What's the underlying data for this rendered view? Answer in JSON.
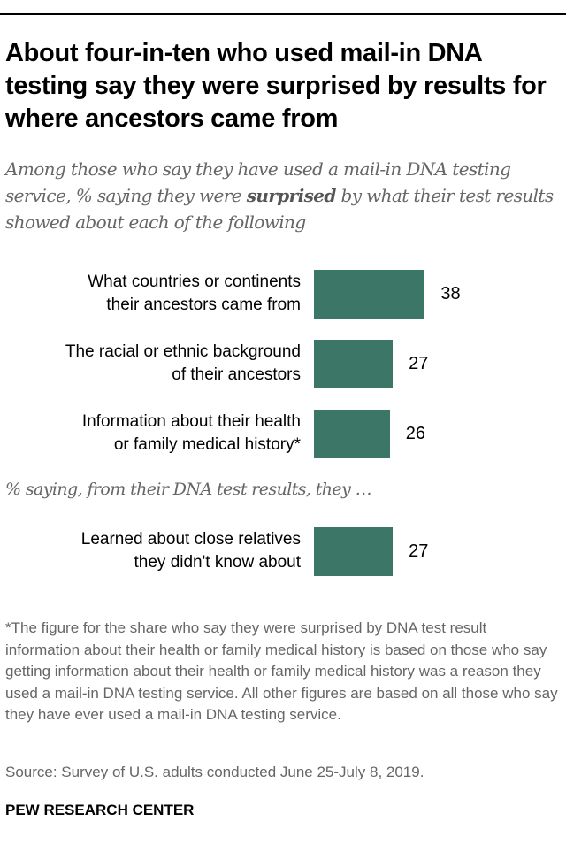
{
  "title": "About four-in-ten who used mail-in DNA testing say they were surprised by results for where ancestors came from",
  "subtitle_pre": "Among those who say they have used a mail-in DNA testing service, % saying they were ",
  "subtitle_bold": "surprised",
  "subtitle_post": " by what their test results showed about each of the following",
  "section2_label": "% saying, from their DNA test results, they …",
  "note": "*The figure for the share who say they were surprised by DNA test result information about their health or family medical history is based on those who say getting information about their health or family medical history was a reason they used a mail-in DNA testing service. All other figures are based on all those who say they have ever used a mail-in DNA testing service.",
  "source": "Source: Survey of U.S. adults conducted June 25-July 8, 2019.",
  "brand": "PEW RESEARCH CENTER",
  "chart_data": {
    "type": "bar",
    "orientation": "horizontal",
    "categories": [
      "What countries or continents their ancestors came from",
      "The racial or ethnic background of their ancestors",
      "Information about their health or family medical history*",
      "Learned about close relatives they didn't know about"
    ],
    "values": [
      38,
      27,
      26,
      27
    ],
    "color": "#3b7666",
    "grid": false
  }
}
